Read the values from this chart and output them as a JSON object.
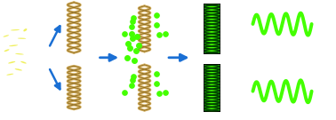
{
  "bg_color": "#ffffff",
  "yellow_color": "#f0f060",
  "blue_arrow": "#1a6fd4",
  "green_color": "#44ff00",
  "dark_green": "#004400",
  "mid_green": "#228800",
  "tan_color": "#d4b060",
  "tan_dark": "#8a6820",
  "tan_light": "#f0d890",
  "ellipse_positions": [
    [
      0.04,
      0.62,
      0.028,
      0.01,
      20
    ],
    [
      0.058,
      0.55,
      0.026,
      0.009,
      -15
    ],
    [
      0.035,
      0.48,
      0.027,
      0.01,
      40
    ],
    [
      0.065,
      0.68,
      0.025,
      0.009,
      -5
    ],
    [
      0.02,
      0.58,
      0.024,
      0.009,
      55
    ],
    [
      0.055,
      0.42,
      0.026,
      0.01,
      -35
    ],
    [
      0.075,
      0.75,
      0.025,
      0.009,
      75
    ],
    [
      0.045,
      0.75,
      0.027,
      0.009,
      10
    ],
    [
      0.018,
      0.7,
      0.023,
      0.008,
      45
    ],
    [
      0.07,
      0.48,
      0.025,
      0.009,
      -50
    ],
    [
      0.03,
      0.38,
      0.024,
      0.009,
      30
    ]
  ]
}
